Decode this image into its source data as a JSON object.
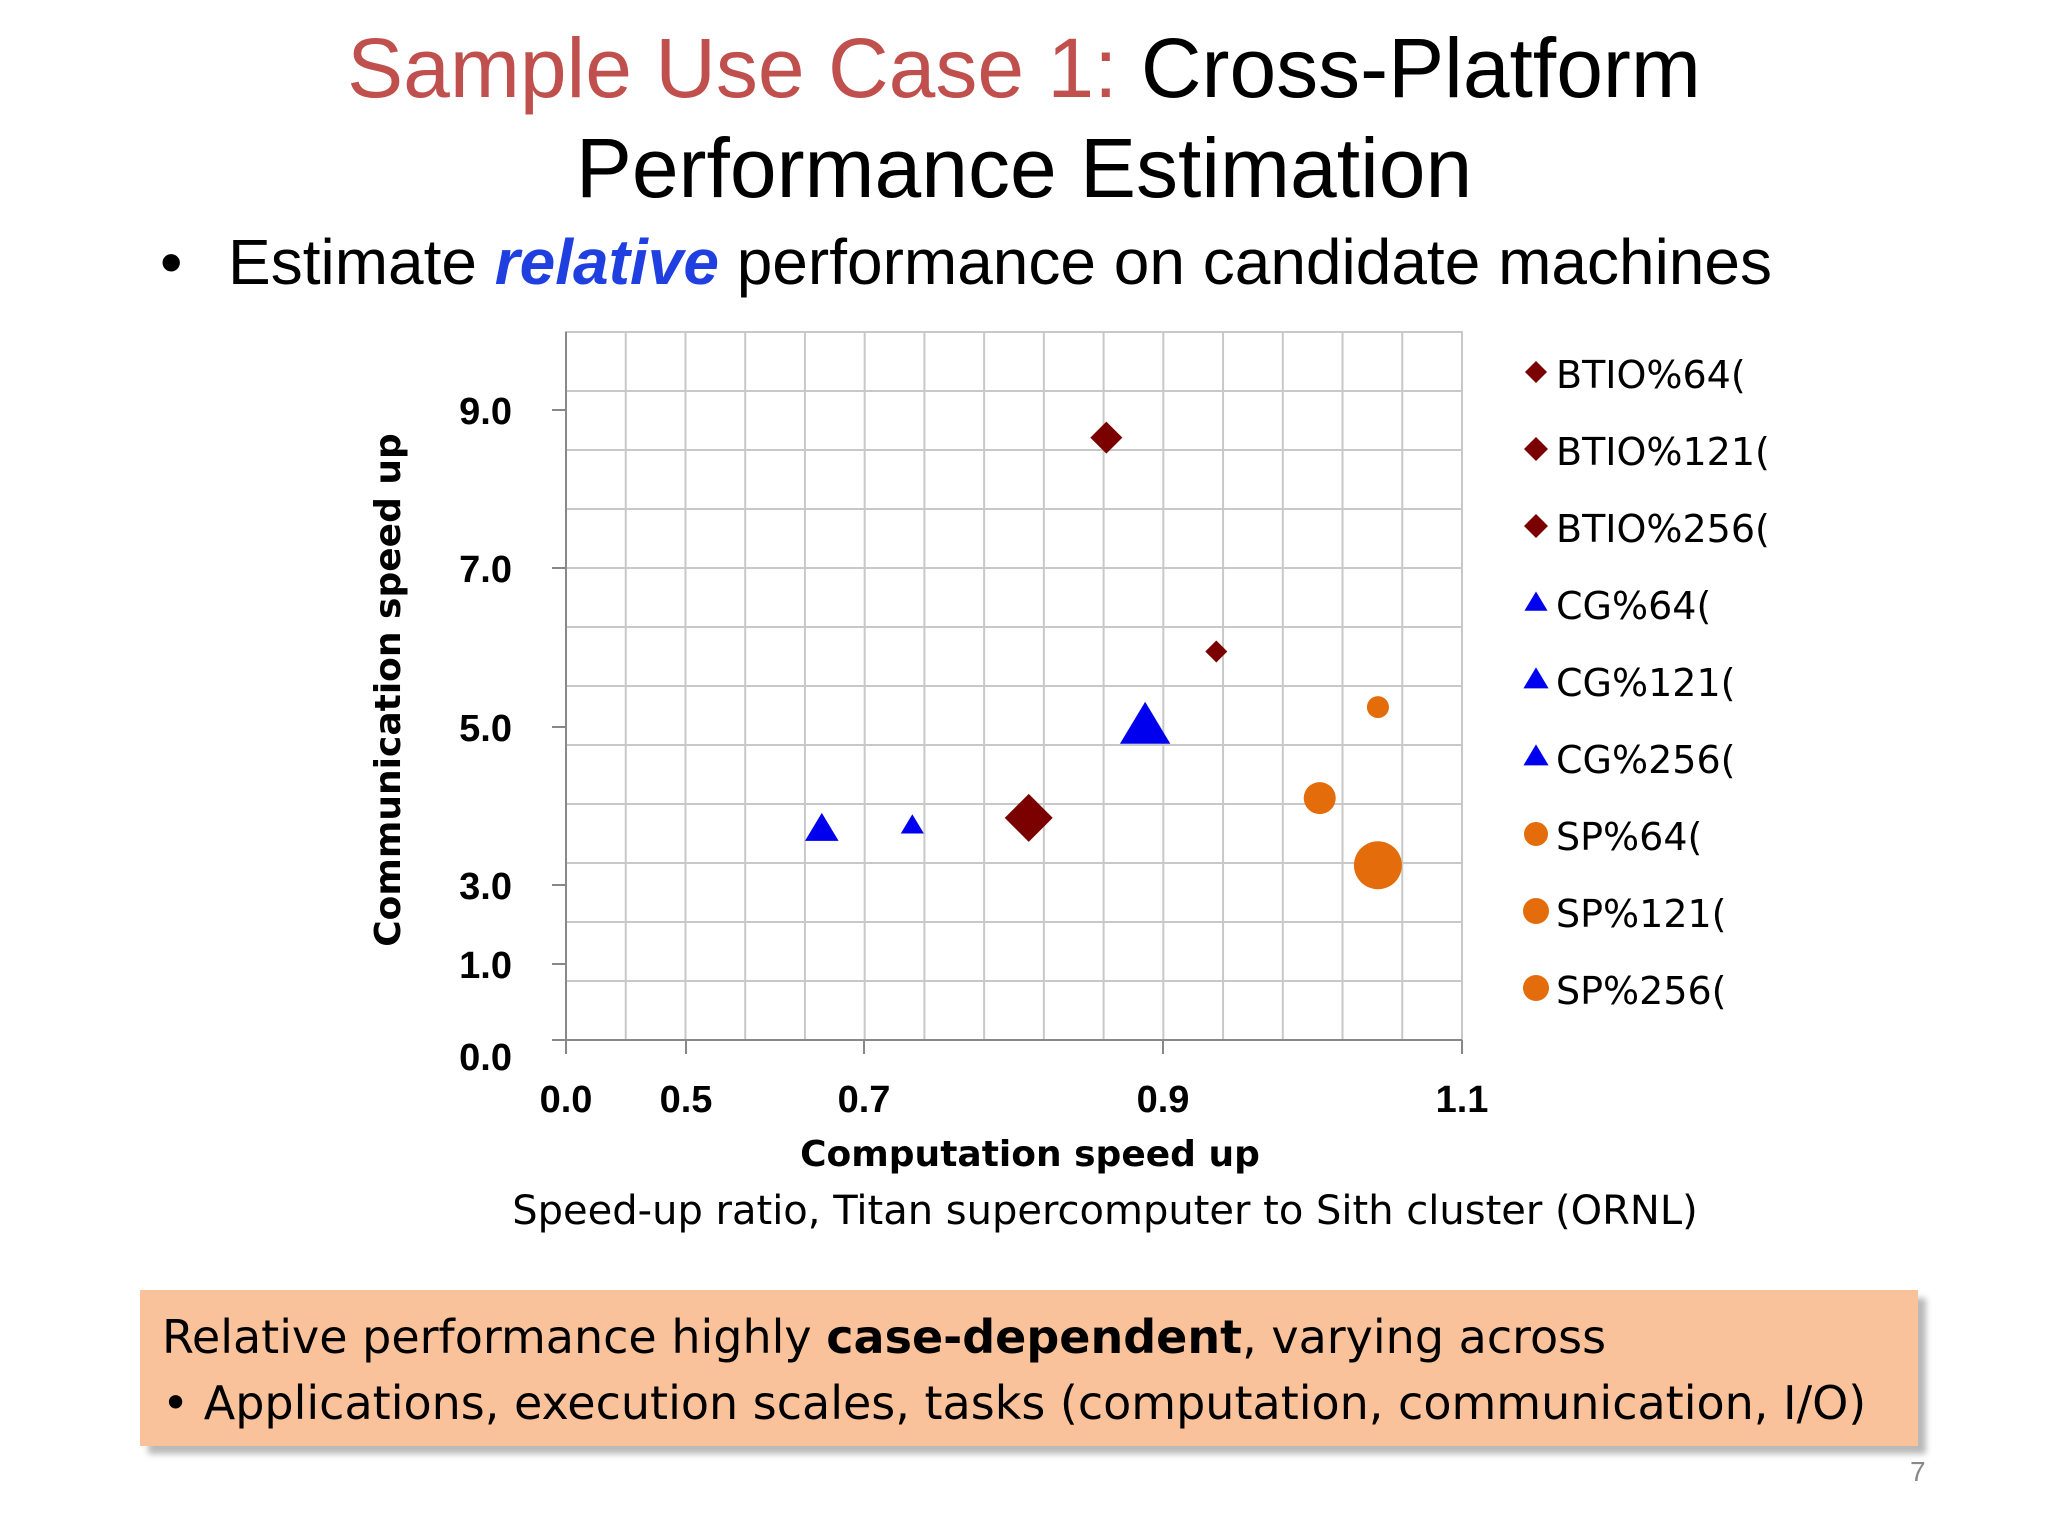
{
  "slide": {
    "title_accent": "Sample Use Case 1:",
    "title_rest": "Cross-Platform",
    "title_line2": "Performance Estimation",
    "bullet_before": "Estimate",
    "bullet_em": "relative",
    "bullet_after": "performance on candidate machines",
    "caption": "Speed-up ratio, Titan supercomputer to Sith cluster (ORNL)",
    "callout_line1_before": "Relative performance highly",
    "callout_line1_bold": "case-dependent",
    "callout_line1_after": ", varying across",
    "callout_line2": "• Applications, execution scales, tasks (computation, communication, I/O)",
    "page_number": "7"
  },
  "chart_data": {
    "type": "scatter",
    "xlabel": "Computation speed up",
    "ylabel": "Communication speed up",
    "x_ticks": [
      "0.0",
      "0.5",
      "0.7",
      "0.9",
      "1.1"
    ],
    "y_ticks": [
      "0.0",
      "1.0",
      "3.0",
      "5.0",
      "7.0",
      "9.0"
    ],
    "grid": true,
    "legend_position": "right",
    "colors": {
      "BTIO": "#7b0000",
      "CG": "#0000ee",
      "SP": "#e46c0a"
    },
    "series": [
      {
        "name": "BTIO%64(",
        "marker": "diamond",
        "size": "small",
        "color": "#7b0000",
        "x": 0.91,
        "y": 5.95
      },
      {
        "name": "BTIO%121(",
        "marker": "diamond",
        "size": "medium",
        "color": "#7b0000",
        "x": 0.825,
        "y": 8.65
      },
      {
        "name": "BTIO%256(",
        "marker": "diamond",
        "size": "large",
        "color": "#7b0000",
        "x": 0.765,
        "y": 3.85
      },
      {
        "name": "CG%64(",
        "marker": "triangle",
        "size": "small",
        "color": "#0000ee",
        "x": 0.675,
        "y": 3.75
      },
      {
        "name": "CG%121(",
        "marker": "triangle",
        "size": "medium",
        "color": "#0000ee",
        "x": 0.605,
        "y": 3.7
      },
      {
        "name": "CG%256(",
        "marker": "triangle",
        "size": "large",
        "color": "#0000ee",
        "x": 0.855,
        "y": 5.0
      },
      {
        "name": "SP%64(",
        "marker": "circle",
        "size": "small",
        "color": "#e46c0a",
        "x": 1.035,
        "y": 5.25
      },
      {
        "name": "SP%121(",
        "marker": "circle",
        "size": "medium",
        "color": "#e46c0a",
        "x": 0.99,
        "y": 4.1
      },
      {
        "name": "SP%256(",
        "marker": "circle",
        "size": "large",
        "color": "#e46c0a",
        "x": 1.035,
        "y": 3.25
      }
    ]
  }
}
